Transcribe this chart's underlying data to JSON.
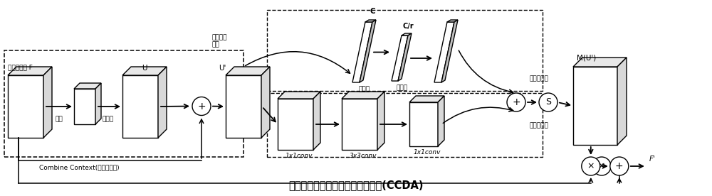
{
  "title": "结合上下文信息的双重注意力机制(CCDA)",
  "title_fontsize": 10.5,
  "bg_color": "#ffffff",
  "box_color": "#ffffff",
  "edge_color": "#000000",
  "text_color": "#000000",
  "labels": {
    "input_feature": "输入特征图 F",
    "U": "U",
    "pooling": "池化",
    "upsampling": "上采样",
    "combine_context": "Combine Context(结合上下文)",
    "U_prime": "U'",
    "conv1x1_1": "1x1conv",
    "conv3x3": "3x3conv",
    "conv1x1_2": "1x1conv",
    "C": "C",
    "C_r": "C/r",
    "global_avg": "全局平均\n池化",
    "fc1": "全连接",
    "fc2": "全连接",
    "channel_att": "通道注意力",
    "spatial_att": "空间注意力",
    "M_U": "M(U')",
    "F_prime": "F'"
  }
}
